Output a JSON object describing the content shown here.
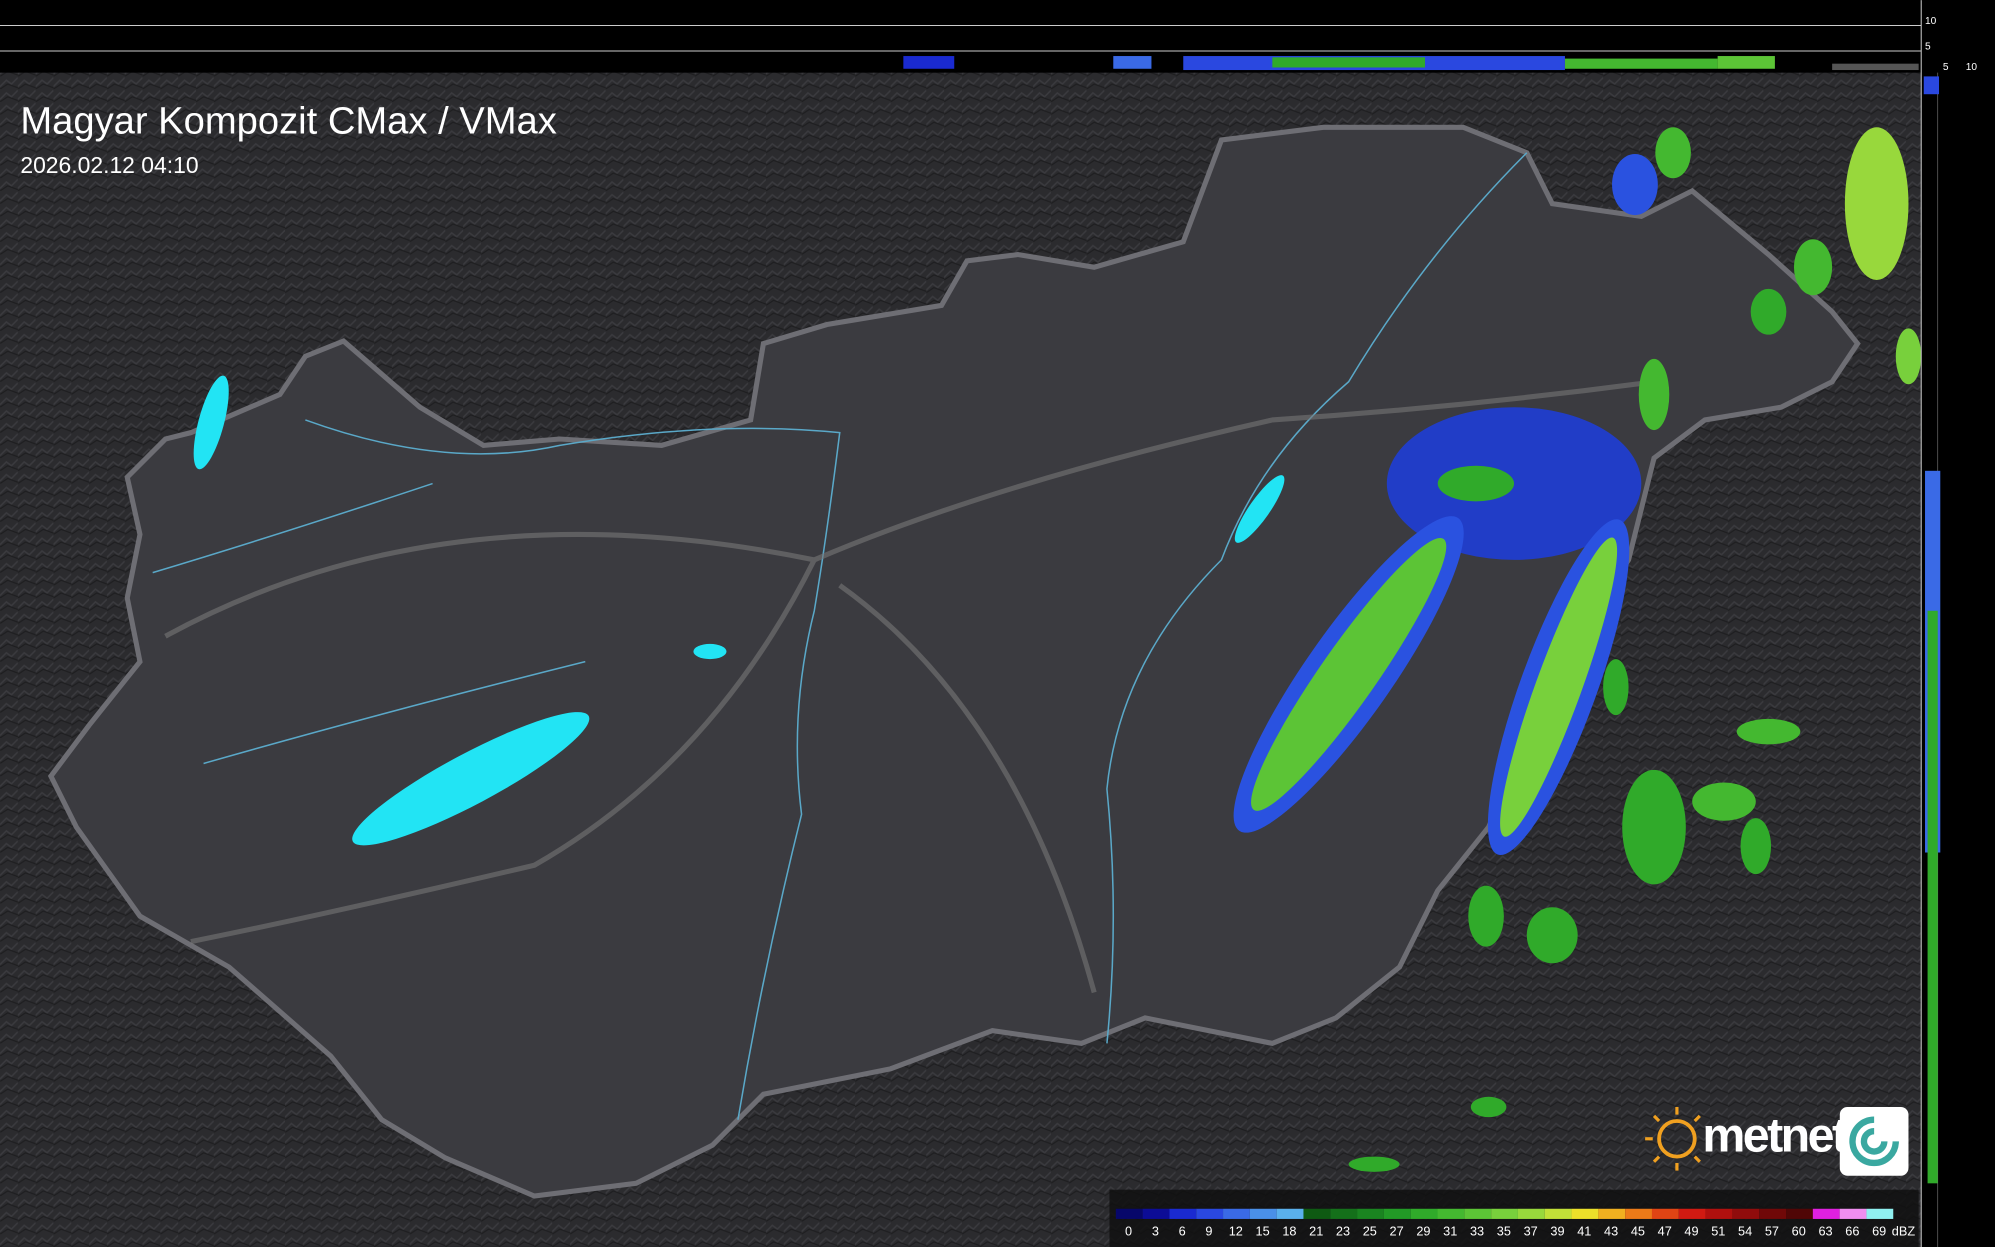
{
  "header": {
    "title": "Magyar Kompozit CMax / VMax",
    "timestamp": "2026.02.12 04:10"
  },
  "profile_axes": {
    "top_ticks": [
      "10",
      "5"
    ],
    "side_ticks": [
      "5",
      "10"
    ]
  },
  "legend": {
    "unit": "dBZ",
    "items": [
      {
        "label": "0",
        "color": "#07076a"
      },
      {
        "label": "3",
        "color": "#0c0c96"
      },
      {
        "label": "6",
        "color": "#1a2ad0"
      },
      {
        "label": "9",
        "color": "#2a48e0"
      },
      {
        "label": "12",
        "color": "#3a6ae6"
      },
      {
        "label": "15",
        "color": "#4a90e8"
      },
      {
        "label": "18",
        "color": "#5ab0ec"
      },
      {
        "label": "21",
        "color": "#0e5a12"
      },
      {
        "label": "23",
        "color": "#14701a"
      },
      {
        "label": "25",
        "color": "#1a8420"
      },
      {
        "label": "27",
        "color": "#229a26"
      },
      {
        "label": "29",
        "color": "#30aa2a"
      },
      {
        "label": "31",
        "color": "#44b830"
      },
      {
        "label": "33",
        "color": "#5cc436"
      },
      {
        "label": "35",
        "color": "#78d03c"
      },
      {
        "label": "37",
        "color": "#98d83c"
      },
      {
        "label": "39",
        "color": "#c2e038"
      },
      {
        "label": "41",
        "color": "#ece02a"
      },
      {
        "label": "43",
        "color": "#f0b020"
      },
      {
        "label": "45",
        "color": "#ec7a18"
      },
      {
        "label": "47",
        "color": "#e04414"
      },
      {
        "label": "49",
        "color": "#d01a12"
      },
      {
        "label": "51",
        "color": "#b0100e"
      },
      {
        "label": "54",
        "color": "#900c0c"
      },
      {
        "label": "57",
        "color": "#700808"
      },
      {
        "label": "60",
        "color": "#500606"
      },
      {
        "label": "63",
        "color": "#e020e0"
      },
      {
        "label": "66",
        "color": "#f08ef0"
      },
      {
        "label": "69",
        "color": "#90f0f0"
      }
    ]
  },
  "logo": {
    "text": "metnet"
  }
}
